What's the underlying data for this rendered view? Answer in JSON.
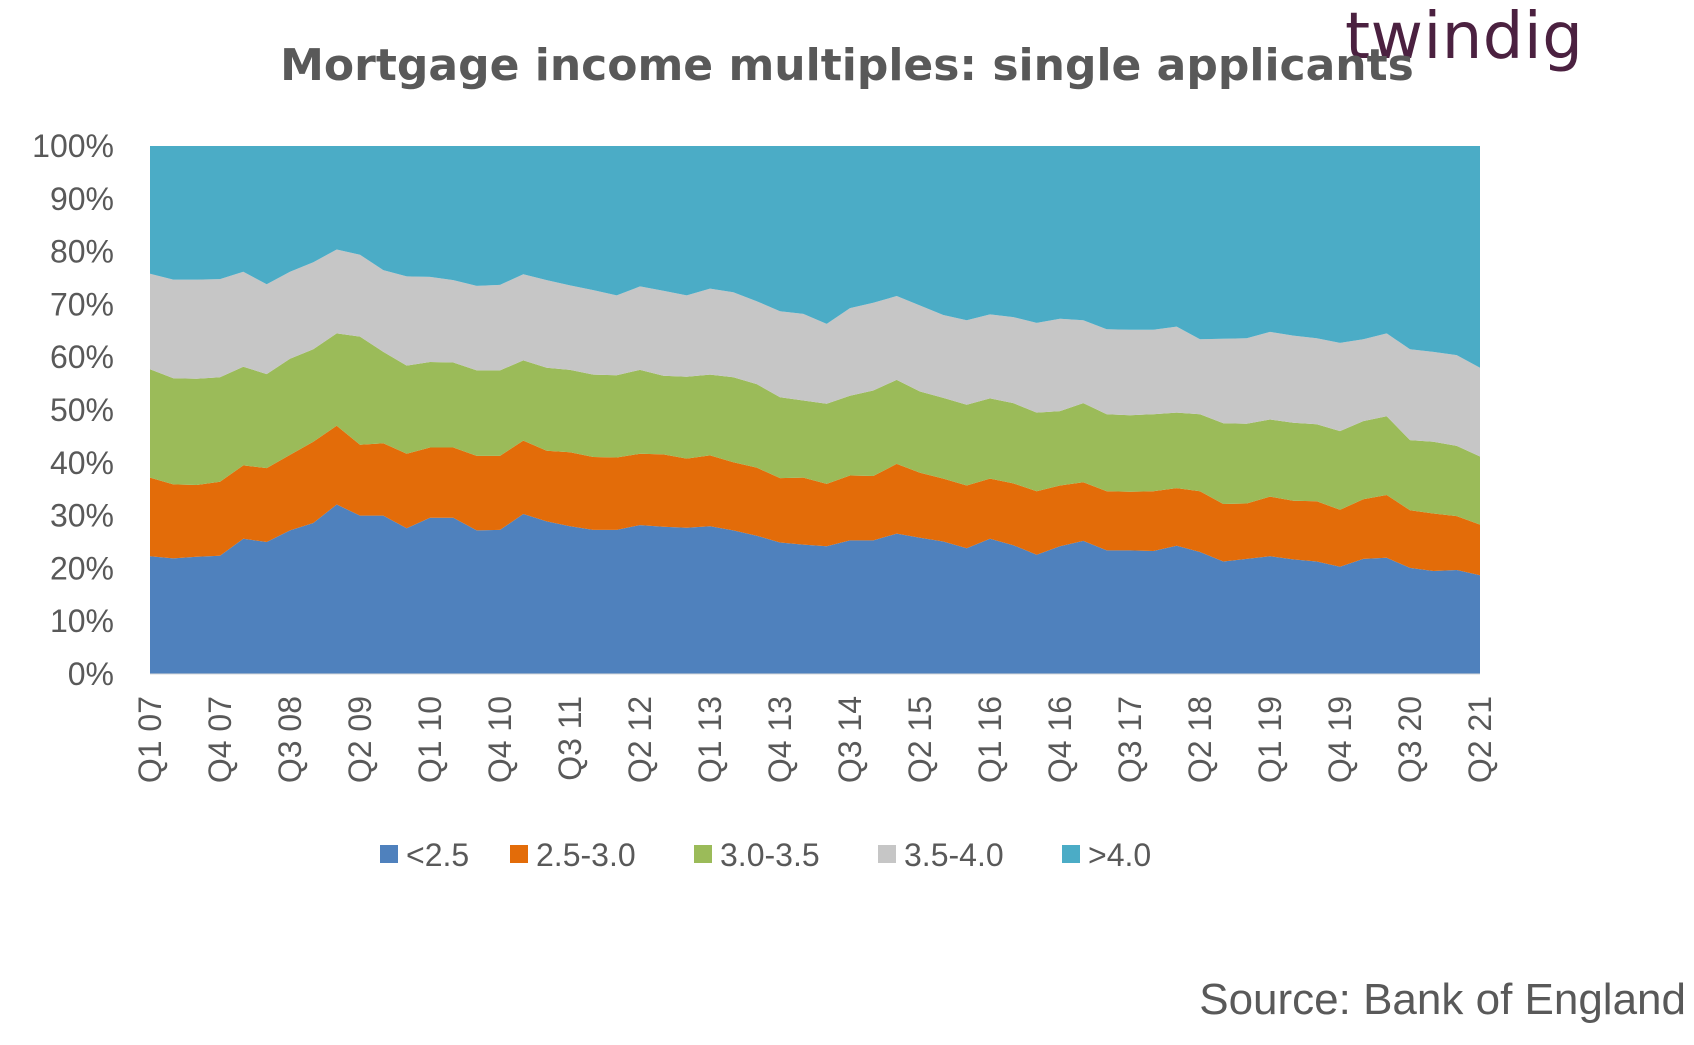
{
  "logo": "twindig",
  "source": "Source: Bank of England",
  "chart_data": {
    "type": "area",
    "stacked": true,
    "percent": true,
    "title": "Mortgage income multiples: single applicants",
    "ylim": [
      0,
      100
    ],
    "y_ticks": [
      "0%",
      "10%",
      "20%",
      "30%",
      "40%",
      "50%",
      "60%",
      "70%",
      "80%",
      "90%",
      "100%"
    ],
    "x": [
      "Q1 07",
      "Q2 07",
      "Q3 07",
      "Q4 07",
      "Q1 08",
      "Q2 08",
      "Q3 08",
      "Q4 08",
      "Q1 09",
      "Q2 09",
      "Q3 09",
      "Q4 09",
      "Q1 10",
      "Q2 10",
      "Q3 10",
      "Q4 10",
      "Q1 11",
      "Q2 11",
      "Q3 11",
      "Q4 11",
      "Q1 12",
      "Q2 12",
      "Q3 12",
      "Q4 12",
      "Q1 13",
      "Q2 13",
      "Q3 13",
      "Q4 13",
      "Q1 14",
      "Q2 14",
      "Q3 14",
      "Q4 14",
      "Q1 15",
      "Q2 15",
      "Q3 15",
      "Q4 15",
      "Q1 16",
      "Q2 16",
      "Q3 16",
      "Q4 16",
      "Q1 17",
      "Q2 17",
      "Q3 17",
      "Q4 17",
      "Q1 18",
      "Q2 18",
      "Q3 18",
      "Q4 18",
      "Q1 19",
      "Q2 19",
      "Q3 19",
      "Q4 19",
      "Q1 20",
      "Q2 20",
      "Q3 20",
      "Q4 20",
      "Q1 21",
      "Q2 21"
    ],
    "x_tick_labels": [
      "Q1 07",
      "Q4 07",
      "Q3 08",
      "Q2 09",
      "Q1 10",
      "Q4 10",
      "Q3 11",
      "Q2 12",
      "Q1 13",
      "Q4 13",
      "Q3 14",
      "Q2 15",
      "Q1 16",
      "Q4 16",
      "Q3 17",
      "Q2 18",
      "Q1 19",
      "Q4 19",
      "Q3 20",
      "Q2 21"
    ],
    "legend_position": "bottom",
    "series": [
      {
        "name": "<2.5",
        "color": "#4f81bd",
        "values": [
          22.3,
          21.9,
          22.2,
          22.4,
          25.6,
          25.0,
          27.2,
          28.6,
          32.1,
          30.0,
          30.0,
          27.6,
          29.6,
          29.6,
          27.2,
          27.3,
          30.3,
          28.9,
          28.0,
          27.3,
          27.3,
          28.2,
          27.9,
          27.7,
          28.0,
          27.2,
          26.2,
          24.9,
          24.5,
          24.2,
          25.3,
          25.3,
          26.6,
          25.8,
          25.1,
          23.8,
          25.6,
          24.4,
          22.6,
          24.2,
          25.2,
          23.4,
          23.4,
          23.3,
          24.3,
          23.1,
          21.3,
          21.8,
          22.3,
          21.7,
          21.3,
          20.3,
          21.8,
          22.0,
          20.1,
          19.5,
          19.7,
          18.7
        ]
      },
      {
        "name": "2.5-3.0",
        "color": "#e36c09",
        "values": [
          14.9,
          14.0,
          13.6,
          14.0,
          13.9,
          14.0,
          14.3,
          15.4,
          14.9,
          13.4,
          13.7,
          14.1,
          13.3,
          13.3,
          14.1,
          14.0,
          13.9,
          13.4,
          14.0,
          13.8,
          13.7,
          13.5,
          13.7,
          13.1,
          13.4,
          12.9,
          12.9,
          12.2,
          12.7,
          11.8,
          12.3,
          12.2,
          13.2,
          12.3,
          11.9,
          11.9,
          11.4,
          11.7,
          12.0,
          11.5,
          11.1,
          11.2,
          11.1,
          11.3,
          10.9,
          11.5,
          10.9,
          10.5,
          11.3,
          11.1,
          11.4,
          10.8,
          11.3,
          11.9,
          10.9,
          10.9,
          10.2,
          9.6
        ]
      },
      {
        "name": "3.0-3.5",
        "color": "#9bbb59",
        "values": [
          20.5,
          20.1,
          20.1,
          19.8,
          18.7,
          17.8,
          18.2,
          17.5,
          17.5,
          20.5,
          17.3,
          16.7,
          16.2,
          16.1,
          16.2,
          16.2,
          15.2,
          15.7,
          15.6,
          15.6,
          15.6,
          15.9,
          14.9,
          15.5,
          15.3,
          16.1,
          15.8,
          15.3,
          14.6,
          15.2,
          15.1,
          16.2,
          15.9,
          15.4,
          15.3,
          15.3,
          15.2,
          15.2,
          14.9,
          14.1,
          15.0,
          14.6,
          14.5,
          14.6,
          14.3,
          14.6,
          15.3,
          15.1,
          14.6,
          14.8,
          14.6,
          14.9,
          14.8,
          14.9,
          13.3,
          13.6,
          13.3,
          12.9
        ]
      },
      {
        "name": "3.5-4.0",
        "color": "#c6c6c6",
        "values": [
          18.1,
          18.7,
          18.8,
          18.6,
          18.0,
          17.0,
          16.5,
          16.5,
          15.9,
          15.5,
          15.5,
          16.9,
          16.1,
          15.6,
          16.0,
          16.2,
          16.3,
          16.6,
          16.0,
          16.0,
          15.1,
          15.8,
          16.1,
          15.4,
          16.3,
          16.1,
          15.7,
          16.3,
          16.4,
          15.1,
          16.6,
          16.6,
          15.9,
          16.3,
          15.7,
          16.0,
          15.9,
          16.3,
          17.0,
          17.5,
          15.7,
          16.1,
          16.2,
          16.0,
          16.3,
          14.2,
          16.0,
          16.2,
          16.6,
          16.5,
          16.3,
          16.7,
          15.5,
          15.7,
          17.2,
          17.0,
          17.2,
          16.8
        ]
      },
      {
        "name": ">4.0",
        "color": "#4bacc6",
        "values": [
          24.2,
          25.3,
          25.3,
          25.2,
          23.8,
          26.2,
          23.8,
          22.0,
          19.6,
          20.6,
          23.5,
          24.7,
          24.8,
          25.4,
          26.5,
          26.3,
          24.3,
          25.4,
          26.4,
          27.3,
          28.3,
          26.6,
          27.4,
          28.3,
          27.0,
          27.7,
          29.4,
          31.3,
          31.8,
          33.7,
          30.7,
          29.7,
          28.4,
          30.2,
          32.0,
          33.0,
          31.9,
          32.4,
          33.5,
          32.7,
          33.0,
          34.7,
          34.8,
          34.8,
          34.2,
          36.6,
          36.5,
          36.4,
          35.2,
          35.9,
          36.4,
          37.3,
          36.6,
          35.5,
          38.5,
          39.0,
          39.6,
          42.0
        ]
      }
    ]
  }
}
